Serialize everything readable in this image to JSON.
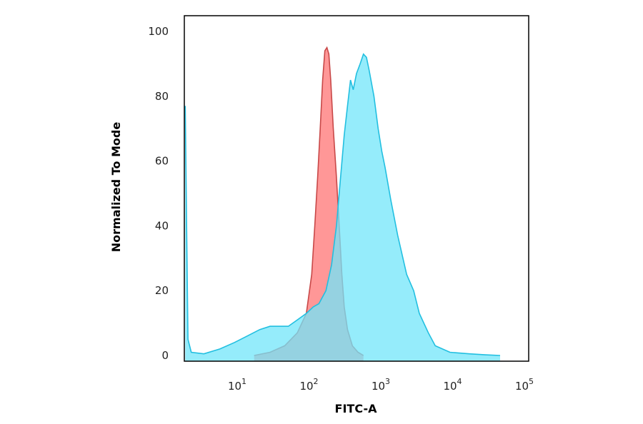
{
  "chart_data": {
    "type": "area",
    "title": "",
    "xlabel": "FITC-A",
    "ylabel": "Normalized To Mode",
    "x_scale": "log",
    "xlim": [
      1.6,
      100000
    ],
    "ylim": [
      0,
      100
    ],
    "x_ticks": [
      {
        "base": "10",
        "exp": "1",
        "value": 10
      },
      {
        "base": "10",
        "exp": "2",
        "value": 100
      },
      {
        "base": "10",
        "exp": "3",
        "value": 1000
      },
      {
        "base": "10",
        "exp": "4",
        "value": 10000
      },
      {
        "base": "10",
        "exp": "5",
        "value": 100000
      }
    ],
    "y_ticks": [
      {
        "label": "0",
        "value": 0
      },
      {
        "label": "20",
        "value": 20
      },
      {
        "label": "40",
        "value": 40
      },
      {
        "label": "60",
        "value": 60
      },
      {
        "label": "80",
        "value": 80
      },
      {
        "label": "100",
        "value": 100
      }
    ],
    "grid": false,
    "series": [
      {
        "color": "#ff8c8c",
        "stroke": "#c84848",
        "points": [
          [
            15,
            0
          ],
          [
            25,
            1
          ],
          [
            40,
            3
          ],
          [
            60,
            7
          ],
          [
            80,
            13
          ],
          [
            95,
            25
          ],
          [
            105,
            40
          ],
          [
            115,
            55
          ],
          [
            125,
            70
          ],
          [
            135,
            85
          ],
          [
            145,
            94
          ],
          [
            155,
            95
          ],
          [
            165,
            93
          ],
          [
            175,
            85
          ],
          [
            190,
            70
          ],
          [
            210,
            55
          ],
          [
            230,
            40
          ],
          [
            250,
            25
          ],
          [
            270,
            15
          ],
          [
            300,
            8
          ],
          [
            350,
            3
          ],
          [
            420,
            1
          ],
          [
            500,
            0
          ]
        ]
      },
      {
        "color": "#72e6fa",
        "stroke": "#22bfe0",
        "points": [
          [
            1.65,
            77
          ],
          [
            1.72,
            40
          ],
          [
            1.8,
            5
          ],
          [
            2.0,
            1
          ],
          [
            3,
            0.5
          ],
          [
            5,
            2
          ],
          [
            8,
            4
          ],
          [
            12,
            6
          ],
          [
            18,
            8
          ],
          [
            25,
            9
          ],
          [
            35,
            9
          ],
          [
            45,
            9
          ],
          [
            60,
            11
          ],
          [
            80,
            13
          ],
          [
            100,
            15
          ],
          [
            120,
            16
          ],
          [
            150,
            20
          ],
          [
            180,
            28
          ],
          [
            210,
            40
          ],
          [
            240,
            55
          ],
          [
            270,
            68
          ],
          [
            300,
            77
          ],
          [
            330,
            85
          ],
          [
            360,
            82
          ],
          [
            400,
            87
          ],
          [
            450,
            90
          ],
          [
            500,
            93
          ],
          [
            550,
            92
          ],
          [
            600,
            88
          ],
          [
            700,
            80
          ],
          [
            800,
            70
          ],
          [
            900,
            63
          ],
          [
            1000,
            58
          ],
          [
            1200,
            48
          ],
          [
            1500,
            37
          ],
          [
            2000,
            25
          ],
          [
            2500,
            20
          ],
          [
            3000,
            13
          ],
          [
            4000,
            7
          ],
          [
            5000,
            3
          ],
          [
            8000,
            1
          ],
          [
            15000,
            0.5
          ],
          [
            25000,
            0.2
          ],
          [
            40000,
            0
          ]
        ]
      }
    ]
  }
}
